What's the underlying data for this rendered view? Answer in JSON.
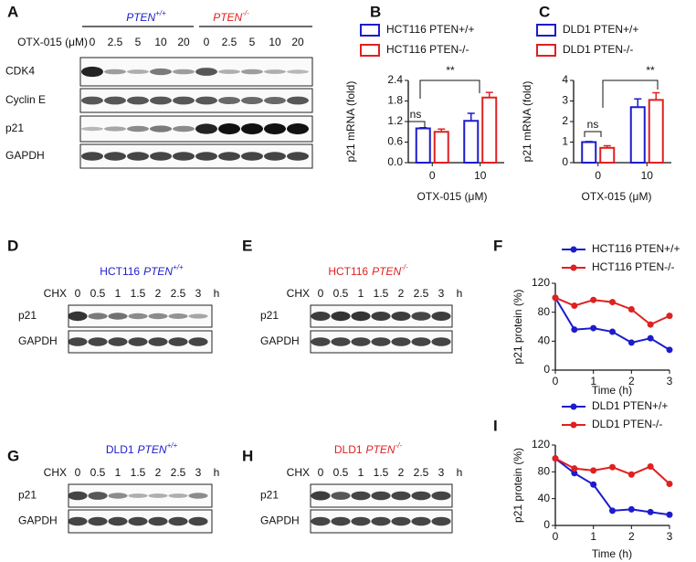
{
  "panel_labels": [
    "A",
    "B",
    "C",
    "D",
    "E",
    "F",
    "G",
    "H",
    "I"
  ],
  "blots": {
    "A": {
      "groups": [
        {
          "gene": "PTEN",
          "genotype": "+/+",
          "color": "#1c1ccc"
        },
        {
          "gene": "PTEN",
          "genotype": "-/-",
          "color": "#e02020"
        }
      ],
      "treatment": "OTX-015 (μM)",
      "lanes": [
        "0",
        "2.5",
        "5",
        "10",
        "20",
        "0",
        "2.5",
        "5",
        "10",
        "20"
      ],
      "rows": [
        "CDK4",
        "Cyclin E",
        "p21",
        "GAPDH"
      ]
    },
    "D": {
      "title": {
        "cell": "HCT116",
        "gene": "PTEN",
        "genotype": "+/+",
        "color": "#1c1ccc"
      },
      "treatment": "CHX",
      "lanes": [
        "0",
        "0.5",
        "1",
        "1.5",
        "2",
        "2.5",
        "3"
      ],
      "unit": "h",
      "rows": [
        "p21",
        "GAPDH"
      ]
    },
    "E": {
      "title": {
        "cell": "HCT116",
        "gene": "PTEN",
        "genotype": "-/-",
        "color": "#e02020"
      },
      "treatment": "CHX",
      "lanes": [
        "0",
        "0.5",
        "1",
        "1.5",
        "2",
        "2.5",
        "3"
      ],
      "unit": "h",
      "rows": [
        "p21",
        "GAPDH"
      ]
    },
    "G": {
      "title": {
        "cell": "DLD1",
        "gene": "PTEN",
        "genotype": "+/+",
        "color": "#1c1ccc"
      },
      "treatment": "CHX",
      "lanes": [
        "0",
        "0.5",
        "1",
        "1.5",
        "2",
        "2.5",
        "3"
      ],
      "unit": "h",
      "rows": [
        "p21",
        "GAPDH"
      ]
    },
    "H": {
      "title": {
        "cell": "DLD1",
        "gene": "PTEN",
        "genotype": "-/-",
        "color": "#e02020"
      },
      "treatment": "CHX",
      "lanes": [
        "0",
        "0.5",
        "1",
        "1.5",
        "2",
        "2.5",
        "3"
      ],
      "unit": "h",
      "rows": [
        "p21",
        "GAPDH"
      ]
    }
  },
  "chart_data": [
    {
      "type": "bar",
      "categories": [
        "0",
        "10"
      ],
      "x_label": "OTX-015 (μM)",
      "y_label": "p21 mRNA (fold)",
      "ylim": [
        0,
        2.4
      ],
      "yticks": [
        {
          "value": 0,
          "label": "0.0"
        },
        0.6,
        1.2,
        1.8,
        2.4
      ],
      "series": [
        {
          "name": "HCT116 PTEN+/+",
          "color": "#1c1ccc",
          "values": [
            1.0,
            1.22
          ],
          "errors": [
            0.02,
            0.22
          ]
        },
        {
          "name": "HCT116 PTEN-/-",
          "color": "#e02020",
          "values": [
            0.9,
            1.9
          ],
          "errors": [
            0.08,
            0.15
          ]
        }
      ],
      "annotations": [
        "ns",
        "**"
      ]
    },
    {
      "type": "bar",
      "categories": [
        "0",
        "10"
      ],
      "x_label": "OTX-015 (μM)",
      "y_label": "p21 mRNA (fold)",
      "ylim": [
        0,
        4
      ],
      "yticks": [
        0,
        1,
        2,
        3,
        4
      ],
      "series": [
        {
          "name": "DLD1 PTEN+/+",
          "color": "#1c1ccc",
          "values": [
            1.0,
            2.7
          ],
          "errors": [
            0.03,
            0.4
          ]
        },
        {
          "name": "DLD1 PTEN-/-",
          "color": "#e02020",
          "values": [
            0.72,
            3.05
          ],
          "errors": [
            0.1,
            0.35
          ]
        }
      ],
      "annotations": [
        "ns",
        "**"
      ]
    },
    {
      "type": "line",
      "x": [
        0,
        0.5,
        1,
        1.5,
        2,
        2.5,
        3
      ],
      "x_label": "Time (h)",
      "y_label": "p21 protein (%)",
      "xlim": [
        0,
        3
      ],
      "xticks": [
        0,
        1,
        2,
        3
      ],
      "ylim": [
        0,
        120
      ],
      "yticks": [
        0,
        40,
        80,
        120
      ],
      "series": [
        {
          "name": "HCT116 PTEN+/+",
          "color": "#1c1ccc",
          "values": [
            100,
            56,
            58,
            53,
            38,
            44,
            28
          ]
        },
        {
          "name": "HCT116 PTEN-/-",
          "color": "#e02020",
          "values": [
            100,
            89,
            97,
            94,
            84,
            63,
            75
          ]
        }
      ]
    },
    {
      "type": "line",
      "x": [
        0,
        0.5,
        1,
        1.5,
        2,
        2.5,
        3
      ],
      "x_label": "Time (h)",
      "y_label": "p21 protein (%)",
      "xlim": [
        0,
        3
      ],
      "xticks": [
        0,
        1,
        2,
        3
      ],
      "ylim": [
        0,
        120
      ],
      "yticks": [
        0,
        40,
        80,
        120
      ],
      "series": [
        {
          "name": "DLD1 PTEN+/+",
          "color": "#1c1ccc",
          "values": [
            100,
            78,
            61,
            22,
            24,
            20,
            16
          ]
        },
        {
          "name": "DLD1 PTEN-/-",
          "color": "#e02020",
          "values": [
            100,
            85,
            82,
            87,
            76,
            88,
            62
          ]
        }
      ]
    }
  ]
}
